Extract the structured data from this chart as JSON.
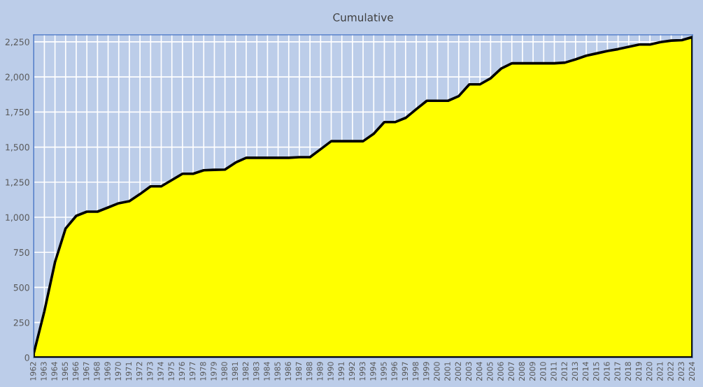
{
  "chart_data": {
    "type": "area",
    "title": "Cumulative",
    "categories": [
      "1962",
      "1963",
      "1964",
      "1965",
      "1966",
      "1967",
      "1968",
      "1969",
      "1970",
      "1971",
      "1972",
      "1973",
      "1974",
      "1975",
      "1976",
      "1977",
      "1978",
      "1979",
      "1980",
      "1981",
      "1982",
      "1983",
      "1984",
      "1985",
      "1986",
      "1987",
      "1988",
      "1989",
      "1990",
      "1991",
      "1992",
      "1993",
      "1994",
      "1995",
      "1996",
      "1997",
      "1998",
      "1999",
      "2000",
      "2001",
      "2002",
      "2003",
      "2004",
      "2005",
      "2006",
      "2007",
      "2008",
      "2009",
      "2010",
      "2011",
      "2012",
      "2013",
      "2014",
      "2015",
      "2016",
      "2017",
      "2018",
      "2019",
      "2020",
      "2021",
      "2022",
      "2023",
      "2024"
    ],
    "series": [
      {
        "color": "#ffff00",
        "values": [
          30,
          330,
          680,
          920,
          1010,
          1040,
          1040,
          1070,
          1100,
          1115,
          1165,
          1220,
          1220,
          1265,
          1310,
          1310,
          1335,
          1338,
          1340,
          1390,
          1424,
          1424,
          1424,
          1424,
          1424,
          1428,
          1428,
          1485,
          1542,
          1542,
          1542,
          1542,
          1595,
          1678,
          1678,
          1708,
          1770,
          1830,
          1830,
          1830,
          1863,
          1947,
          1947,
          1990,
          2060,
          2097,
          2097,
          2097,
          2097,
          2097,
          2102,
          2125,
          2151,
          2168,
          2185,
          2198,
          2215,
          2231,
          2231,
          2248,
          2259,
          2262,
          2284
        ]
      }
    ],
    "ylim": [
      0,
      2300
    ],
    "yticks": [
      0,
      250,
      500,
      750,
      {
        "value": 1000,
        "label": "1,000"
      },
      {
        "value": 1250,
        "label": "1,250"
      },
      {
        "value": 1500,
        "label": "1,500"
      },
      {
        "value": 1750,
        "label": "1,750"
      },
      {
        "value": 2000,
        "label": "2,000"
      },
      {
        "value": 2250,
        "label": "2,250"
      }
    ],
    "grid": true,
    "legend": false
  }
}
